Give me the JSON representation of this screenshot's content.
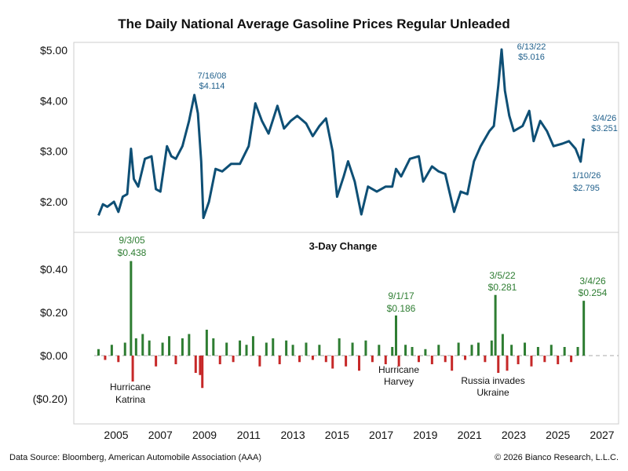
{
  "chart_data": [
    {
      "type": "line",
      "title": "The Daily National Average Gasoline Prices Regular Unleaded",
      "ylim": [
        1.5,
        5.1
      ],
      "y_ticks": [
        "$2.00",
        "$3.00",
        "$4.00",
        "$5.00"
      ],
      "y_tick_values": [
        2,
        3,
        4,
        5
      ],
      "xlim": [
        2004,
        2027
      ],
      "x_ticks": [
        "2005",
        "2007",
        "2009",
        "2011",
        "2013",
        "2015",
        "2017",
        "2019",
        "2021",
        "2023",
        "2025",
        "2027"
      ],
      "x_tick_values": [
        2005,
        2007,
        2009,
        2011,
        2013,
        2015,
        2017,
        2019,
        2021,
        2023,
        2025,
        2027
      ],
      "line_color": "#0e4f75",
      "series": [
        {
          "x": [
            2004.2,
            2004.4,
            2004.6,
            2004.9,
            2005.1,
            2005.3,
            2005.5,
            2005.67,
            2005.8,
            2006.0,
            2006.3,
            2006.6,
            2006.8,
            2007.0,
            2007.3,
            2007.5,
            2007.7,
            2008.0,
            2008.3,
            2008.54,
            2008.7,
            2008.85,
            2008.95,
            2009.2,
            2009.5,
            2009.8,
            2010.2,
            2010.6,
            2011.0,
            2011.3,
            2011.6,
            2011.9,
            2012.3,
            2012.6,
            2012.9,
            2013.2,
            2013.6,
            2013.9,
            2014.2,
            2014.5,
            2014.8,
            2015.0,
            2015.3,
            2015.5,
            2015.8,
            2016.1,
            2016.4,
            2016.8,
            2017.2,
            2017.5,
            2017.67,
            2017.9,
            2018.3,
            2018.7,
            2018.9,
            2019.3,
            2019.6,
            2019.9,
            2020.3,
            2020.6,
            2020.9,
            2021.2,
            2021.5,
            2021.9,
            2022.1,
            2022.3,
            2022.45,
            2022.6,
            2022.8,
            2023.0,
            2023.4,
            2023.7,
            2023.9,
            2024.2,
            2024.5,
            2024.8,
            2025.2,
            2025.5,
            2025.8,
            2026.03,
            2026.1,
            2026.17
          ],
          "values": [
            1.73,
            1.95,
            1.9,
            2.0,
            1.8,
            2.1,
            2.15,
            3.05,
            2.45,
            2.3,
            2.85,
            2.9,
            2.25,
            2.2,
            3.1,
            2.9,
            2.85,
            3.1,
            3.6,
            4.114,
            3.75,
            2.8,
            1.68,
            2.0,
            2.65,
            2.6,
            2.75,
            2.75,
            3.1,
            3.95,
            3.6,
            3.35,
            3.9,
            3.45,
            3.6,
            3.7,
            3.55,
            3.3,
            3.5,
            3.65,
            3.0,
            2.1,
            2.5,
            2.8,
            2.4,
            1.75,
            2.3,
            2.2,
            2.3,
            2.3,
            2.65,
            2.5,
            2.85,
            2.9,
            2.4,
            2.7,
            2.6,
            2.55,
            1.8,
            2.2,
            2.15,
            2.8,
            3.1,
            3.4,
            3.5,
            4.3,
            5.016,
            4.2,
            3.7,
            3.4,
            3.5,
            3.8,
            3.2,
            3.6,
            3.4,
            3.1,
            3.15,
            3.2,
            3.05,
            2.795,
            3.05,
            3.251
          ]
        }
      ],
      "annotations": [
        {
          "date": "7/16/08",
          "value": "$4.114"
        },
        {
          "date": "6/13/22",
          "value": "$5.016"
        },
        {
          "date": "3/4/26",
          "value": "$3.251"
        },
        {
          "date": "1/10/26",
          "value": "$2.795"
        }
      ]
    },
    {
      "type": "bar",
      "title": "3-Day Change",
      "ylim": [
        -0.3,
        0.5
      ],
      "y_ticks": [
        "$0.40",
        "$0.20",
        "$0.00",
        "($0.20)"
      ],
      "y_tick_values": [
        0.4,
        0.2,
        0.0,
        -0.2
      ],
      "xlim": [
        2004,
        2027
      ],
      "positive_color": "#2e7d32",
      "negative_color": "#c62828",
      "x": [
        2004.2,
        2004.5,
        2004.8,
        2005.1,
        2005.4,
        2005.67,
        2005.75,
        2005.9,
        2006.2,
        2006.5,
        2006.8,
        2007.1,
        2007.4,
        2007.7,
        2008.0,
        2008.3,
        2008.6,
        2008.8,
        2008.9,
        2009.1,
        2009.4,
        2009.7,
        2010.0,
        2010.3,
        2010.6,
        2010.9,
        2011.2,
        2011.5,
        2011.8,
        2012.1,
        2012.4,
        2012.7,
        2013.0,
        2013.3,
        2013.6,
        2013.9,
        2014.2,
        2014.5,
        2014.8,
        2015.1,
        2015.4,
        2015.7,
        2016.0,
        2016.3,
        2016.6,
        2016.9,
        2017.2,
        2017.5,
        2017.67,
        2017.8,
        2018.1,
        2018.4,
        2018.7,
        2019.0,
        2019.3,
        2019.6,
        2019.9,
        2020.2,
        2020.5,
        2020.8,
        2021.1,
        2021.4,
        2021.7,
        2022.0,
        2022.17,
        2022.3,
        2022.5,
        2022.7,
        2022.9,
        2023.2,
        2023.5,
        2023.8,
        2024.1,
        2024.4,
        2024.7,
        2025.0,
        2025.3,
        2025.6,
        2025.9,
        2026.17
      ],
      "values": [
        0.03,
        -0.02,
        0.05,
        -0.03,
        0.06,
        0.438,
        -0.12,
        0.08,
        0.1,
        0.07,
        -0.05,
        0.06,
        0.09,
        -0.04,
        0.08,
        0.1,
        -0.08,
        -0.09,
        -0.15,
        0.12,
        0.08,
        -0.04,
        0.06,
        -0.03,
        0.07,
        0.05,
        0.09,
        -0.05,
        0.06,
        0.08,
        -0.04,
        0.07,
        0.05,
        -0.03,
        0.06,
        -0.02,
        0.05,
        -0.03,
        -0.06,
        0.08,
        -0.05,
        0.06,
        -0.07,
        0.07,
        -0.03,
        0.05,
        -0.04,
        0.04,
        0.186,
        -0.05,
        0.05,
        0.04,
        -0.03,
        0.03,
        -0.04,
        0.05,
        -0.03,
        -0.07,
        0.06,
        -0.02,
        0.05,
        0.06,
        -0.03,
        0.07,
        0.281,
        -0.08,
        0.1,
        -0.07,
        0.05,
        -0.04,
        0.06,
        -0.05,
        0.04,
        -0.03,
        0.05,
        -0.04,
        0.04,
        -0.03,
        0.04,
        0.254
      ],
      "annotations": [
        {
          "date": "9/3/05",
          "value": "$0.438"
        },
        {
          "date": "9/1/17",
          "value": "$0.186"
        },
        {
          "date": "3/5/22",
          "value": "$0.281"
        },
        {
          "date": "3/4/26",
          "value": "$0.254"
        }
      ],
      "events": [
        {
          "line1": "Hurricane",
          "line2": "Katrina"
        },
        {
          "line1": "Hurricane",
          "line2": "Harvey"
        },
        {
          "line1": "Russia invades",
          "line2": "Ukraine"
        }
      ]
    }
  ],
  "footer": {
    "source": "Data Source: Bloomberg, American Automobile Association (AAA)",
    "copyright": "© 2026 Bianco Research, L.L.C."
  }
}
